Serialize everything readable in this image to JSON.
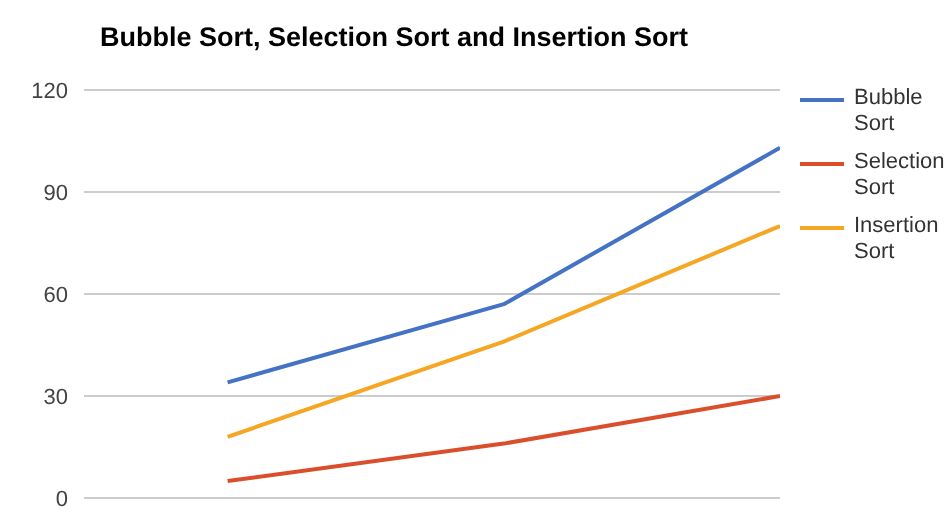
{
  "chart_data": {
    "type": "line",
    "title": "Bubble Sort, Selection Sort and Insertion Sort",
    "categories": [
      null,
      null,
      null
    ],
    "series": [
      {
        "name": "Bubble Sort",
        "color": "#4472c4",
        "values": [
          34,
          57,
          103
        ]
      },
      {
        "name": "Selection Sort",
        "color": "#db4e2b",
        "values": [
          5,
          16,
          30
        ]
      },
      {
        "name": "Insertion Sort",
        "color": "#f5a623",
        "values": [
          18,
          46,
          80
        ]
      }
    ],
    "ylim": [
      0,
      120
    ],
    "yticks": [
      0,
      30,
      60,
      90,
      120
    ],
    "grid": "y",
    "legend": "right",
    "marker": "none",
    "line_style": "solid"
  }
}
